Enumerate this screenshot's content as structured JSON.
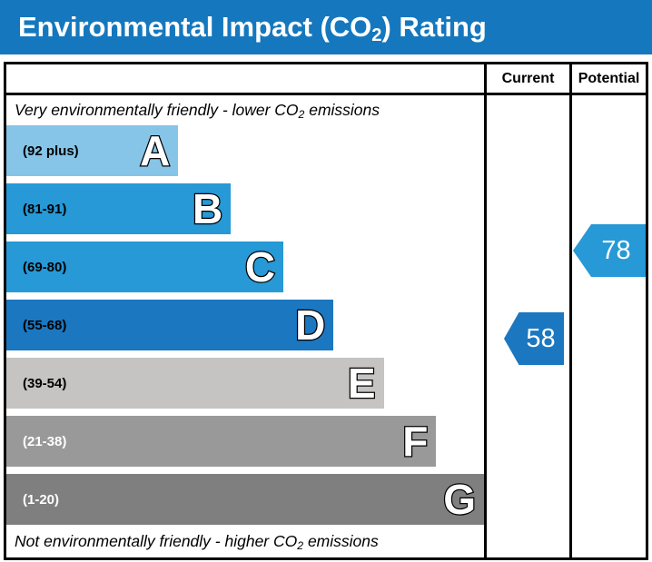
{
  "title": {
    "prefix": "Environmental Impact (CO",
    "sub": "2",
    "suffix": ") Rating"
  },
  "colors": {
    "title_bar": "#1578be",
    "border": "#000000",
    "current_arrow": "#1b77c0",
    "potential_arrow": "#2699d6"
  },
  "table": {
    "current_header": "Current",
    "potential_header": "Potential"
  },
  "notes": {
    "top": {
      "prefix": "Very environmentally friendly - lower CO",
      "sub": "2",
      "suffix": " emissions"
    },
    "bottom": {
      "prefix": "Not environmentally friendly - higher CO",
      "sub": "2",
      "suffix": " emissions"
    }
  },
  "bands": [
    {
      "letter": "A",
      "range": "(92 plus)",
      "color": "#86c5e8",
      "label_color": "#000000",
      "width_pct": 36
    },
    {
      "letter": "B",
      "range": "(81-91)",
      "color": "#2699d6",
      "label_color": "#000000",
      "width_pct": 47
    },
    {
      "letter": "C",
      "range": "(69-80)",
      "color": "#2699d6",
      "label_color": "#000000",
      "width_pct": 58
    },
    {
      "letter": "D",
      "range": "(55-68)",
      "color": "#1b77c0",
      "label_color": "#000000",
      "width_pct": 68.5
    },
    {
      "letter": "E",
      "range": "(39-54)",
      "color": "#c5c4c3",
      "label_color": "#000000",
      "width_pct": 79
    },
    {
      "letter": "F",
      "range": "(21-38)",
      "color": "#9a9999",
      "label_color": "#ffffff",
      "width_pct": 90
    },
    {
      "letter": "G",
      "range": "(1-20)",
      "color": "#7f7f7f",
      "label_color": "#ffffff",
      "width_pct": 100
    }
  ],
  "ratings": {
    "current": "58",
    "potential": "78"
  },
  "chart_data": {
    "type": "bar",
    "title": "Environmental Impact (CO2) Rating",
    "categories": [
      "A",
      "B",
      "C",
      "D",
      "E",
      "F",
      "G"
    ],
    "band_ranges": [
      "92 plus",
      "81-91",
      "69-80",
      "55-68",
      "39-54",
      "21-38",
      "1-20"
    ],
    "values": [
      36,
      47,
      58,
      68.5,
      79,
      90,
      100
    ],
    "markers": [
      {
        "name": "Current",
        "value": 58,
        "band": "D"
      },
      {
        "name": "Potential",
        "value": 78,
        "band": "C"
      }
    ],
    "annotations": [
      "Very environmentally friendly - lower CO2 emissions",
      "Not environmentally friendly - higher CO2 emissions"
    ],
    "legend_position": "none",
    "grid": false
  }
}
